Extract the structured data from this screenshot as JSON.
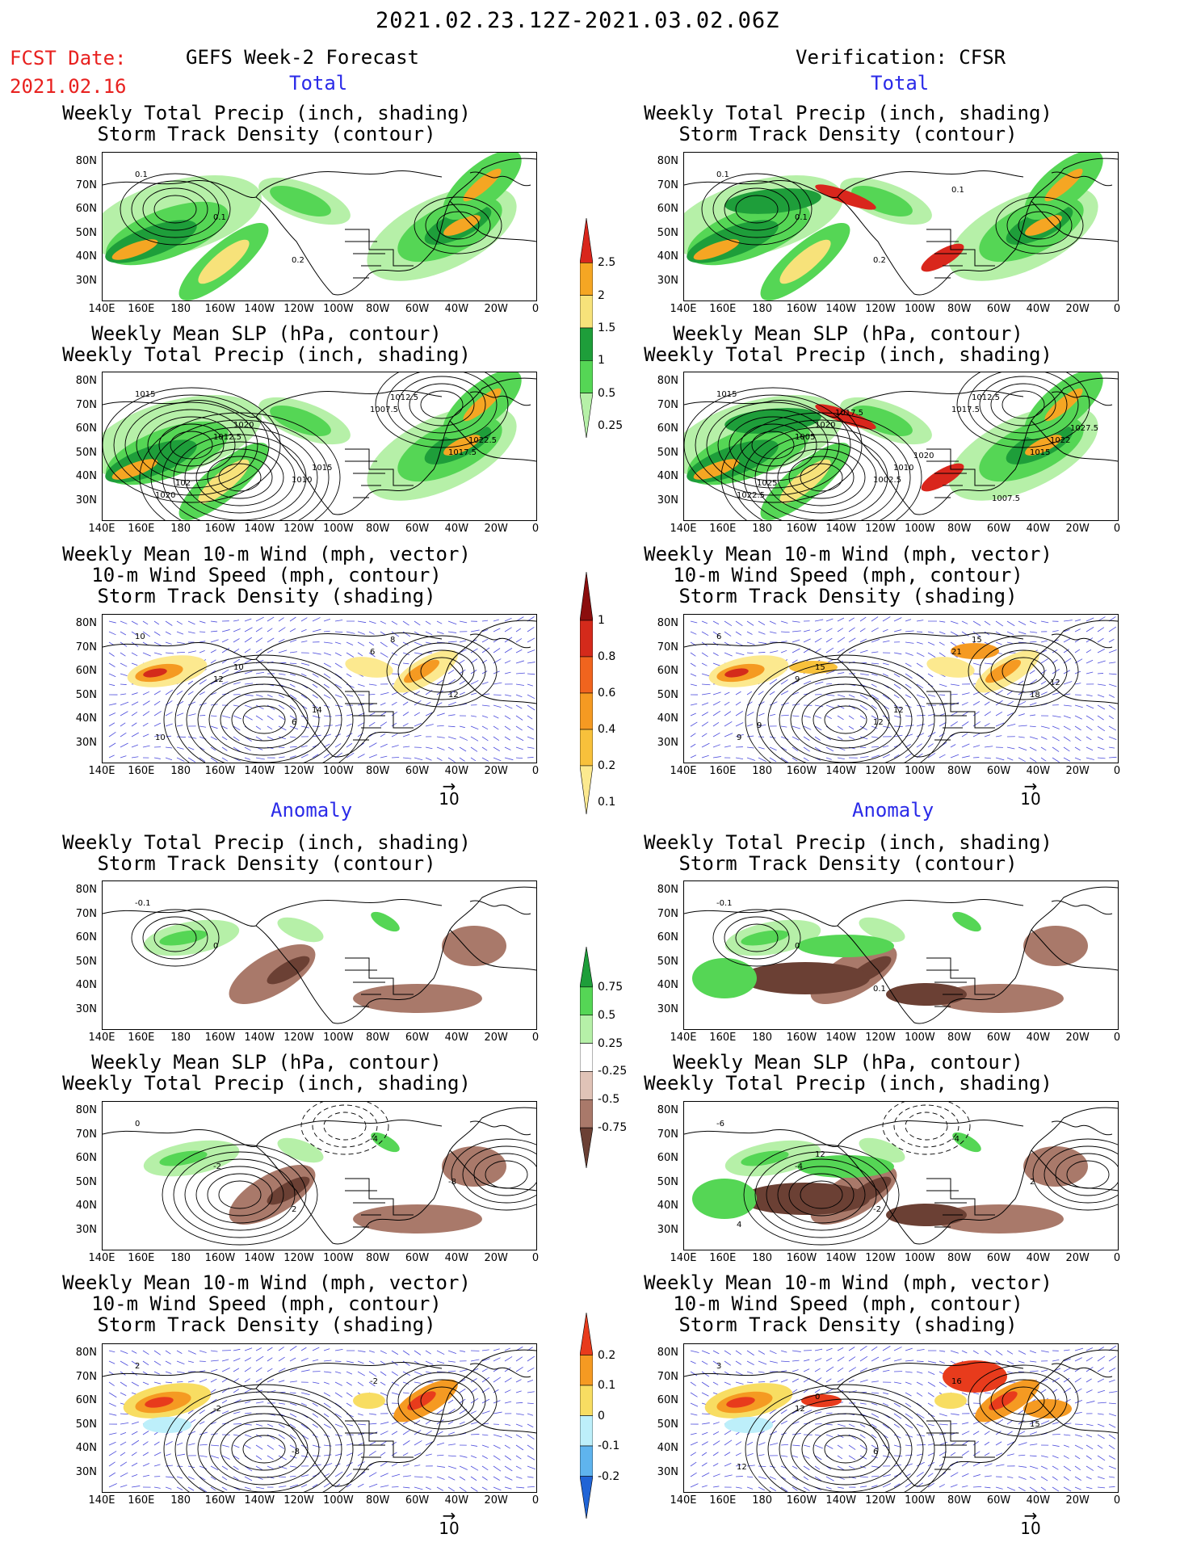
{
  "header": {
    "range": "2021.02.23.12Z-2021.03.02.06Z",
    "fcst_label": "FCST Date:",
    "fcst_date": "2021.02.16",
    "left_title": "GEFS Week-2 Forecast",
    "right_title": "Verification: CFSR"
  },
  "sections": {
    "total": "Total",
    "anomaly": "Anomaly"
  },
  "panel_titles": {
    "precip_storm": [
      "Weekly Total Precip (inch, shading)",
      "Storm Track Density (contour)"
    ],
    "slp_precip": [
      "Weekly Mean SLP (hPa, contour)",
      "Weekly Total Precip (inch, shading)"
    ],
    "wind_storm": [
      "Weekly Mean 10-m Wind (mph, vector)",
      "10-m Wind Speed (mph, contour)",
      "Storm Track Density (shading)"
    ]
  },
  "axes": {
    "lat": [
      "80N",
      "70N",
      "60N",
      "50N",
      "40N",
      "30N"
    ],
    "lon": [
      "140E",
      "160E",
      "180",
      "160W",
      "140W",
      "120W",
      "100W",
      "80W",
      "60W",
      "40W",
      "20W",
      "0"
    ]
  },
  "vector_ref": "10",
  "colorbars": {
    "precip_total": {
      "labels": [
        "2.5",
        "2",
        "1.5",
        "1",
        "0.5",
        "0.25"
      ],
      "colors": [
        "#d9261c",
        "#f5a623",
        "#f7e27a",
        "#1e9e3a",
        "#55d655",
        "#b6f0a8"
      ]
    },
    "storm_total": {
      "labels": [
        "1",
        "0.8",
        "0.6",
        "0.4",
        "0.2",
        "0.1"
      ],
      "colors": [
        "#8b0d0d",
        "#d42a1b",
        "#f0641e",
        "#f59a22",
        "#f8c13b",
        "#fce98f"
      ]
    },
    "precip_anom": {
      "labels": [
        "0.75",
        "0.5",
        "0.25",
        "-0.25",
        "-0.5",
        "-0.75"
      ],
      "colors": [
        "#1e9e3a",
        "#55d655",
        "#b6f0a8",
        "#ffffff",
        "#e0c3b7",
        "#a9796a",
        "#6b4034"
      ]
    },
    "storm_anom": {
      "labels": [
        "0.2",
        "0.1",
        "0",
        "-0.1",
        "-0.2"
      ],
      "colors": [
        "#e83b1c",
        "#f59a22",
        "#f8dd62",
        "#bdeffa",
        "#5fb4ee",
        "#2064d6"
      ]
    }
  },
  "map_labels": {
    "f1": [
      "0.1",
      "0.1",
      "0.2"
    ],
    "v1": [
      "0.1",
      "0.1",
      "0.2",
      "0.1"
    ],
    "f2": [
      "1015",
      "1012.5",
      "1010",
      "1007.5",
      "1017.5",
      "1020",
      "1020",
      "1015",
      "1012.5",
      "1022.5",
      "102"
    ],
    "v2": [
      "1015",
      "1005",
      "1002.5",
      "1017.5",
      "1015",
      "1022.5",
      "1020",
      "1010",
      "1012.5",
      "1022",
      "1025",
      "1017.5",
      "1020",
      "1007.5",
      "1027.5"
    ],
    "f3": [
      "10",
      "12",
      "6",
      "6",
      "12",
      "10",
      "10",
      "14",
      "8"
    ],
    "v3": [
      "6",
      "9",
      "12",
      "21",
      "18",
      "9",
      "15",
      "12",
      "15",
      "12",
      "9"
    ],
    "f4": [
      "-0.1",
      "0"
    ],
    "v4": [
      "-0.1",
      "0",
      "0.1"
    ],
    "f5": [
      "0",
      "-2",
      "2",
      "-4",
      "-8"
    ],
    "v5": [
      "-6",
      "-4",
      "-2",
      "-4",
      "2",
      "4",
      "12"
    ],
    "f6": [
      "2",
      "-2",
      "-8",
      "-2"
    ],
    "v6": [
      "3",
      "12",
      "6",
      "16",
      "15",
      "12",
      "0"
    ]
  }
}
